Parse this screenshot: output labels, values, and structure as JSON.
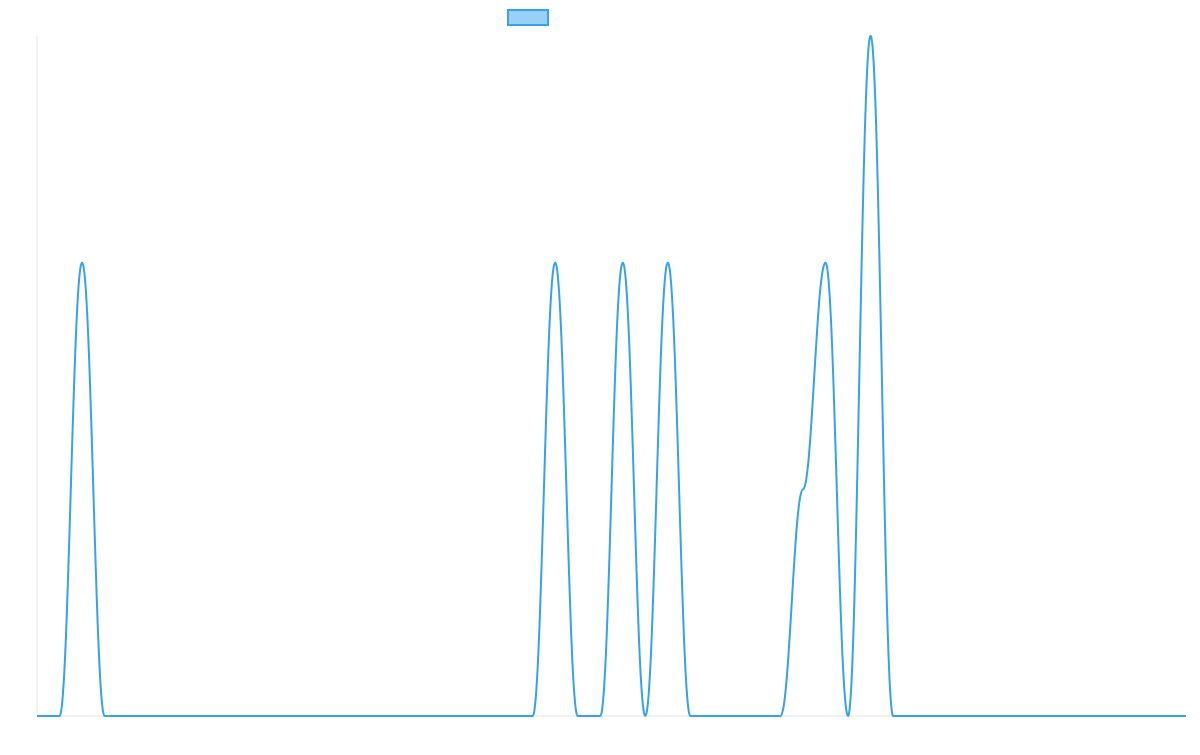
{
  "chart_data": {
    "type": "line",
    "categories": [
      null,
      null,
      null,
      null,
      null,
      null,
      null,
      null,
      null,
      null,
      null,
      null,
      null,
      null,
      null,
      null,
      null,
      null,
      null,
      null,
      null,
      null,
      null,
      null,
      null,
      null,
      null,
      null,
      null,
      null,
      null,
      null,
      null,
      null,
      null,
      null,
      null,
      null,
      null,
      null,
      null,
      null,
      null,
      null,
      null,
      null,
      null,
      null,
      null,
      null,
      null,
      null
    ],
    "series": [
      {
        "color": "#36a2eb",
        "legend_fill": "#9ad0f5",
        "values": [
          0,
          0,
          2,
          0,
          0,
          0,
          0,
          0,
          0,
          0,
          0,
          0,
          0,
          0,
          0,
          0,
          0,
          0,
          0,
          0,
          0,
          0,
          0,
          2,
          0,
          0,
          2,
          0,
          2,
          0,
          0,
          0,
          0,
          0,
          1,
          2,
          0,
          3,
          0,
          0,
          0,
          0,
          0,
          0,
          0,
          0,
          0,
          0,
          0,
          0,
          0,
          0
        ]
      }
    ],
    "ylim": [
      0,
      3
    ],
    "legend": "top"
  }
}
